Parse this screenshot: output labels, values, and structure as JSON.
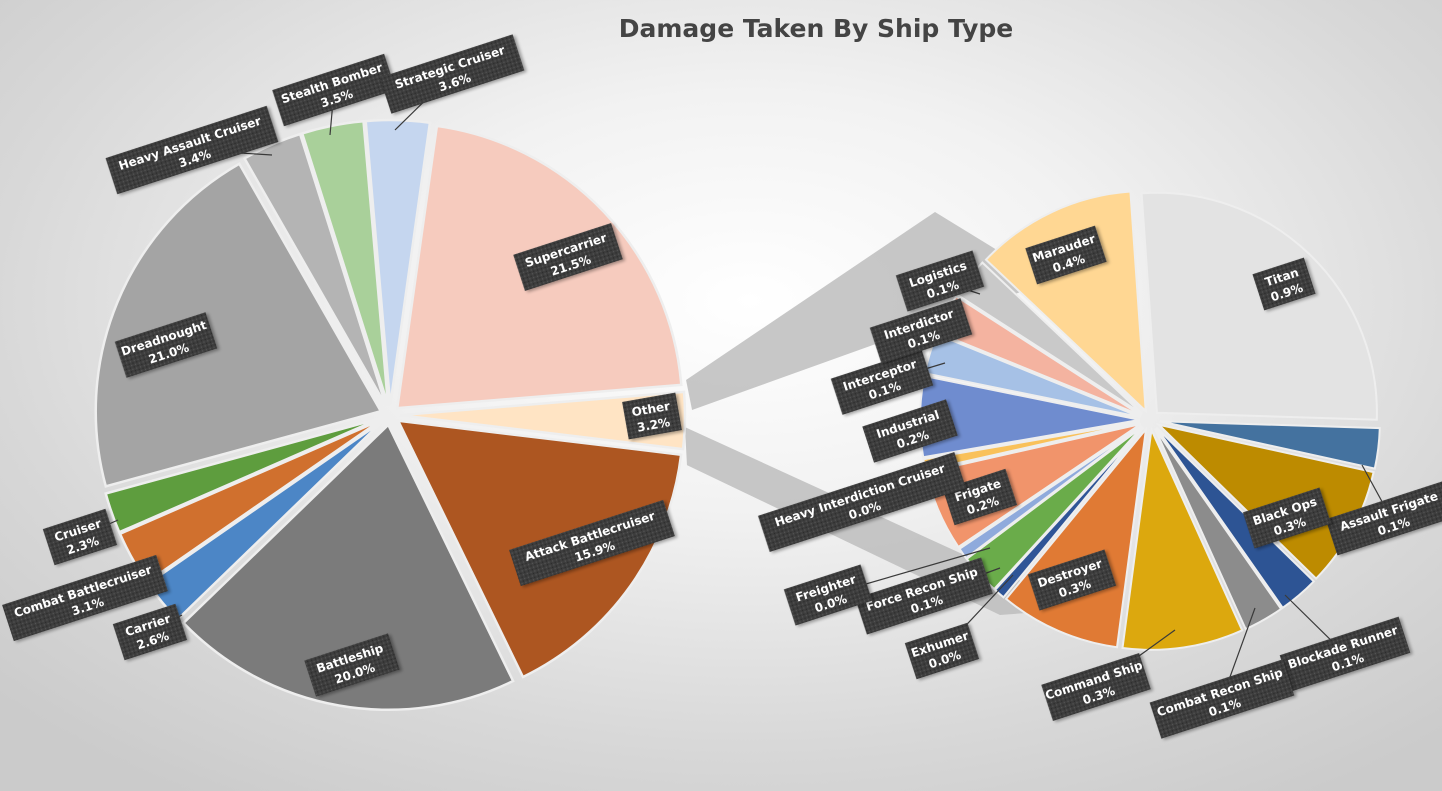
{
  "chart_data": {
    "type": "pie",
    "variant": "bar-of-pie",
    "title": "Damage Taken By Ship Type",
    "legend": "none",
    "data_labels": "category name and percentage",
    "primary_pie": [
      {
        "name": "Supercarrier",
        "percent": 21.5,
        "color": "#F6CBBE"
      },
      {
        "name": "Other",
        "percent": 3.2,
        "color": "#FFE4C4"
      },
      {
        "name": "Attack Battlecruiser",
        "percent": 15.9,
        "color": "#AD5621"
      },
      {
        "name": "Battleship",
        "percent": 20.0,
        "color": "#7B7B7B"
      },
      {
        "name": "Carrier",
        "percent": 2.6,
        "color": "#4C86C6"
      },
      {
        "name": "Combat Battlecruiser",
        "percent": 3.1,
        "color": "#D0702E"
      },
      {
        "name": "Cruiser",
        "percent": 2.3,
        "color": "#5E9D3E"
      },
      {
        "name": "Dreadnought",
        "percent": 21.0,
        "color": "#A4A4A4"
      },
      {
        "name": "Heavy Assault Cruiser",
        "percent": 3.4,
        "color": "#B4B4B4"
      },
      {
        "name": "Stealth Bomber",
        "percent": 3.5,
        "color": "#A9D09A"
      },
      {
        "name": "Strategic Cruiser",
        "percent": 3.6,
        "color": "#C5D6EF"
      }
    ],
    "secondary_pie": [
      {
        "name": "Titan",
        "percent": 0.9,
        "color": "#E3E3E3"
      },
      {
        "name": "Assault Frigate",
        "percent": 0.1,
        "color": "#44729F"
      },
      {
        "name": "Black Ops",
        "percent": 0.3,
        "color": "#BD8B00"
      },
      {
        "name": "Blockade Runner",
        "percent": 0.1,
        "color": "#2D5494"
      },
      {
        "name": "Combat Recon Ship",
        "percent": 0.1,
        "color": "#8C8C8C"
      },
      {
        "name": "Command Ship",
        "percent": 0.3,
        "color": "#DCA80E"
      },
      {
        "name": "Destroyer",
        "percent": 0.3,
        "color": "#E07A34"
      },
      {
        "name": "Exhumer",
        "percent": 0.0,
        "color": "#2F5597"
      },
      {
        "name": "Force Recon Ship",
        "percent": 0.1,
        "color": "#6AAC4A"
      },
      {
        "name": "Freighter",
        "percent": 0.0,
        "color": "#8FAADC"
      },
      {
        "name": "Frigate",
        "percent": 0.2,
        "color": "#F1946B"
      },
      {
        "name": "Heavy Interdiction Cruiser",
        "percent": 0.0,
        "color": "#F9C15A"
      },
      {
        "name": "Industrial",
        "percent": 0.2,
        "color": "#6F8CCF"
      },
      {
        "name": "Interceptor",
        "percent": 0.1,
        "color": "#A6C1E6"
      },
      {
        "name": "Interdictor",
        "percent": 0.1,
        "color": "#F4B3A0"
      },
      {
        "name": "Logistics",
        "percent": 0.1,
        "color": "#C9C9C9"
      },
      {
        "name": "Marauder",
        "percent": 0.4,
        "color": "#FFD793"
      }
    ]
  }
}
